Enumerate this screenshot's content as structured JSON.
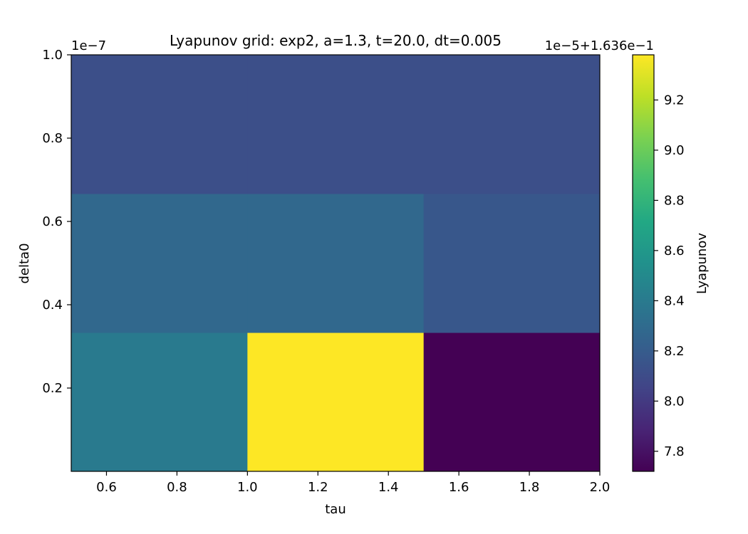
{
  "chart_data": {
    "type": "heatmap",
    "title": "Lyapunov grid: exp2, a=1.3, t=20.0, dt=0.005",
    "xlabel": "tau",
    "ylabel": "delta0",
    "xlim": [
      0.5,
      2.0
    ],
    "ylim": [
      0.0,
      1.0
    ],
    "y_offset_text": "1e−7",
    "x_edges": [
      0.5,
      1.0,
      1.5,
      2.0
    ],
    "y_edges": [
      0.0,
      0.3333,
      0.6667,
      1.0
    ],
    "x_ticks": [
      0.6,
      0.8,
      1.0,
      1.2,
      1.4,
      1.6,
      1.8,
      2.0
    ],
    "x_tick_labels": [
      "0.6",
      "0.8",
      "1.0",
      "1.2",
      "1.4",
      "1.6",
      "1.8",
      "2.0"
    ],
    "y_ticks": [
      0.2,
      0.4,
      0.6,
      0.8,
      1.0
    ],
    "y_tick_labels": [
      "0.2",
      "0.4",
      "0.6",
      "0.8",
      "1.0"
    ],
    "values": [
      [
        8.4,
        9.38,
        7.72
      ],
      [
        8.28,
        8.28,
        8.17
      ],
      [
        8.12,
        8.12,
        8.12
      ]
    ],
    "value_order": "rows from bottom (delta0 low) to top; columns left to right (tau)",
    "colormap": "viridis",
    "colorbar": {
      "label": "Lyapunov",
      "offset_text": "1e−5+1.636e−1",
      "vmin": 7.72,
      "vmax": 9.38,
      "ticks": [
        7.8,
        8.0,
        8.2,
        8.4,
        8.6,
        8.8,
        9.0,
        9.2
      ],
      "tick_labels": [
        "7.8",
        "8.0",
        "8.2",
        "8.4",
        "8.6",
        "8.8",
        "9.0",
        "9.2"
      ]
    },
    "grid": false
  }
}
